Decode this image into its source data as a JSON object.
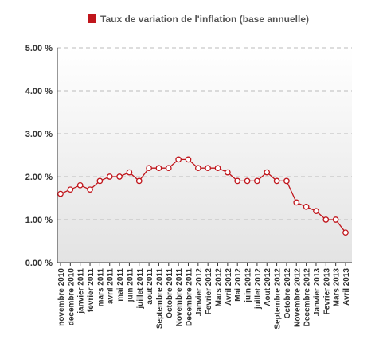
{
  "colors": {
    "series": "#c0161c",
    "marker_fill": "#ffffff",
    "grid": "#bbbbbb",
    "axis": "#333333",
    "background_top": "#ffffff",
    "background_bottom": "#e3e3e3"
  },
  "chart_data": {
    "type": "line",
    "legend_position": "top-center",
    "grid": true,
    "ylim": [
      0,
      5
    ],
    "yticks": [
      "5.00 %",
      "4.00 %",
      "3.00 %",
      "2.00 %",
      "1.00 %",
      "0.00 %"
    ],
    "ytick_values": [
      5,
      4,
      3,
      2,
      1,
      0
    ],
    "categories": [
      "novembre 2010",
      "decembre 2010",
      "janvier 2011",
      "fevrier 2011",
      "mars 2011",
      "avril 2011",
      "mai 2011",
      "juin 2011",
      "juillet 2011",
      "aout 2011",
      "Septembre 2011",
      "Octobre 2011",
      "Novembre 2011",
      "Decembre 2011",
      "Janvier 2012",
      "Fevrier 2012",
      "Mars 2012",
      "Avril 2012",
      "Mai 2012",
      "juin 2012",
      "juillet 2012",
      "Aout 2012",
      "Septembre 2012",
      "Octobre 2012",
      "Novembre 2012",
      "Decembre 2012",
      "Janvier 2013",
      "Fevrier 2013",
      "Mars 2013",
      "Avril 2013"
    ],
    "series": [
      {
        "name": "Taux de variation de l'inflation (base annuelle)",
        "values": [
          1.6,
          1.7,
          1.8,
          1.7,
          1.9,
          2.0,
          2.0,
          2.1,
          1.9,
          2.2,
          2.2,
          2.2,
          2.4,
          2.4,
          2.2,
          2.2,
          2.2,
          2.1,
          1.9,
          1.9,
          1.9,
          2.1,
          1.9,
          1.9,
          1.4,
          1.3,
          1.2,
          1.0,
          1.0,
          0.7
        ]
      }
    ]
  }
}
